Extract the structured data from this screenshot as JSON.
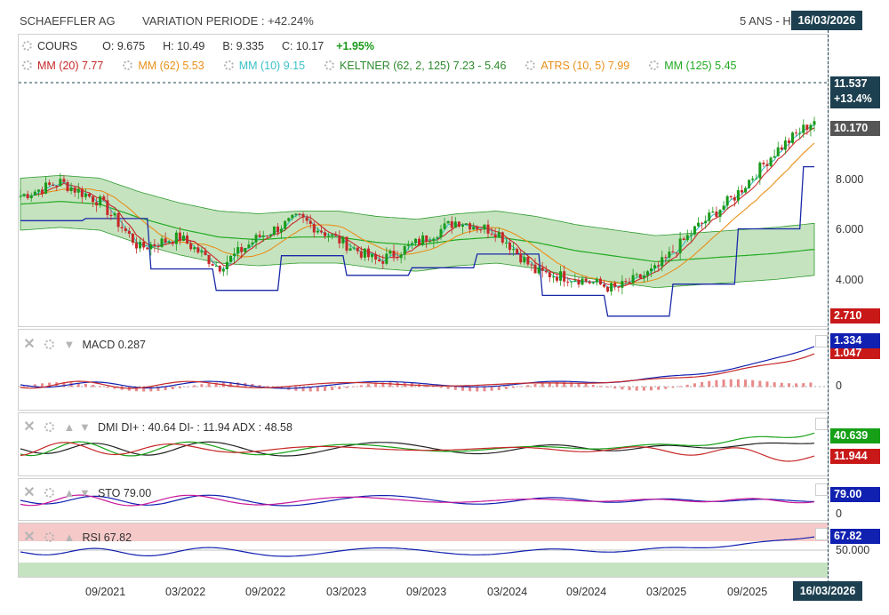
{
  "header": {
    "company": "SCHAEFFLER AG",
    "variation": "VARIATION PERIODE : +42.24%",
    "period": "5 ANS - H",
    "date_badge": "16/03/2026"
  },
  "price_legend": {
    "cours": "COURS",
    "open": "O: 9.675",
    "high": "H: 10.49",
    "low": "B: 9.335",
    "close": "C: 10.17",
    "change": "+1.95%",
    "mm20": "MM (20)  7.77",
    "mm62": "MM (62)  5.53",
    "mm10": "MM (10)  9.15",
    "keltner": "KELTNER (62, 2, 125)  7.23 - 5.46",
    "atrs": "ATRS (10, 5)  7.99",
    "mm125": "MM (125)  5.45"
  },
  "price_tags": {
    "high_value": "11.537",
    "high_pct": "+13.4%",
    "last": "10.170",
    "low": "2.710"
  },
  "price_axis": [
    "8.000",
    "6.000",
    "4.000"
  ],
  "indicators": {
    "macd": {
      "label": "MACD  0.287",
      "tag1": "1.334",
      "tag2": "1.047",
      "zero": "0"
    },
    "dmi": {
      "label": "DMI  DI+ : 40.64  DI- : 11.94  ADX : 48.58",
      "tag1": "40.639",
      "tag2": "11.944"
    },
    "sto": {
      "label": "STO  79.00",
      "tag": "79.00",
      "zero": "0"
    },
    "rsi": {
      "label": "RSI  67.82",
      "tag": "67.82",
      "mid": "50.000"
    }
  },
  "x_axis": [
    "09/2021",
    "03/2022",
    "09/2022",
    "03/2023",
    "09/2023",
    "03/2024",
    "09/2024",
    "03/2025",
    "09/2025"
  ],
  "x_axis_end": "16/03/2026",
  "colors": {
    "up": "#1a9a1a",
    "down": "#c62828",
    "mm20": "#c62828",
    "mm62": "#e8901a",
    "mm10": "#3cc0c8",
    "keltner_fill": "#b8dcb0",
    "keltner_line": "#2e9a2e",
    "atrs": "#1a2aa8",
    "mm125": "#22aa22",
    "tag_dark": "#1d4050",
    "tag_grey": "#555555",
    "tag_red": "#c81818",
    "tag_blue": "#1020b0",
    "tag_green": "#17a017"
  },
  "chart_data": {
    "type": "line",
    "title": "SCHAEFFLER AG",
    "x": [
      "2021-07",
      "2021-09",
      "2021-12",
      "2022-03",
      "2022-06",
      "2022-09",
      "2022-12",
      "2023-03",
      "2023-06",
      "2023-09",
      "2023-12",
      "2024-03",
      "2024-06",
      "2024-09",
      "2024-12",
      "2025-03",
      "2025-06",
      "2025-09",
      "2025-12",
      "2026-02",
      "2026-03"
    ],
    "series": [
      {
        "name": "COURS",
        "values": [
          7.4,
          7.9,
          7.2,
          5.5,
          5.9,
          4.8,
          5.9,
          6.6,
          5.8,
          5.0,
          5.7,
          6.5,
          6.1,
          4.6,
          4.4,
          4.0,
          4.7,
          6.2,
          7.4,
          9.0,
          10.17
        ]
      },
      {
        "name": "MM (125)",
        "values": [
          7.1,
          7.2,
          7.1,
          6.6,
          6.2,
          5.9,
          5.8,
          5.9,
          5.9,
          5.7,
          5.6,
          5.8,
          5.9,
          5.7,
          5.4,
          5.2,
          5.0,
          5.1,
          5.2,
          5.3,
          5.45
        ]
      }
    ],
    "ylim": [
      2.71,
      11.537
    ]
  }
}
